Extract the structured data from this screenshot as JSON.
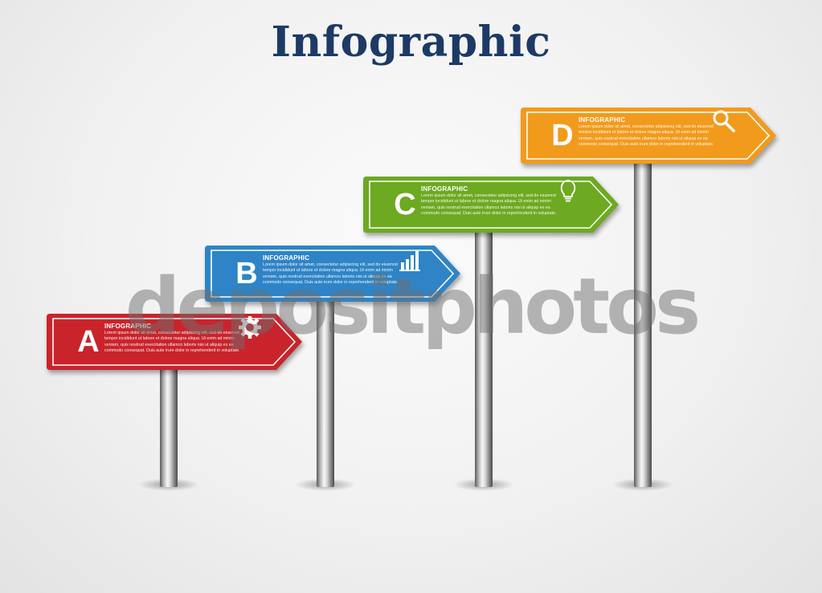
{
  "title": "Infographic",
  "watermark": "depositphotos",
  "signs": [
    {
      "letter": "A",
      "heading": "INFOGRAPHIC",
      "text": "Lorem ipsum dolor sit amet, consectetur adipiscing elit, sed do eiusmod tempor incididunt ut labore et dolore magna aliqua. Ut enim ad minim veniam, quis nostrud exercitation ullamco laboris nisi ut aliquip ex ea commodo consequat. Duis aute irure dolor in reprehenderit in voluptate.",
      "color": "#c9242b",
      "icon": "gear-icon"
    },
    {
      "letter": "B",
      "heading": "INFOGRAPHIC",
      "text": "Lorem ipsum dolor sit amet, consectetur adipiscing elit, sed do eiusmod tempor incididunt ut labore et dolore magna aliqua. Ut enim ad minim veniam, quis nostrud exercitation ullamco laboris nisi ut aliquip ex ea commodo consequat. Duis aute irure dolor in reprehenderit in voluptate.",
      "color": "#2e84c6",
      "icon": "bar-chart-icon"
    },
    {
      "letter": "C",
      "heading": "INFOGRAPHIC",
      "text": "Lorem ipsum dolor sit amet, consectetur adipiscing elit, sed do eiusmod tempor incididunt ut labore et dolore magna aliqua. Ut enim ad minim veniam, quis nostrud exercitation ullamco laboris nisi ut aliquip ex ea commodo consequat. Duis aute irure dolor in reprehenderit in voluptate.",
      "color": "#6da921",
      "icon": "lightbulb-icon"
    },
    {
      "letter": "D",
      "heading": "INFOGRAPHIC",
      "text": "Lorem ipsum dolor sit amet, consectetur adipiscing elit, sed do eiusmod tempor incididunt ut labore et dolore magna aliqua. Ut enim ad minim veniam, quis nostrud exercitation ullamco laboris nisi ut aliquip ex ea commodo consequat. Duis aute irure dolor in reprehenderit in voluptate.",
      "color": "#f29a1c",
      "icon": "search-icon"
    }
  ]
}
